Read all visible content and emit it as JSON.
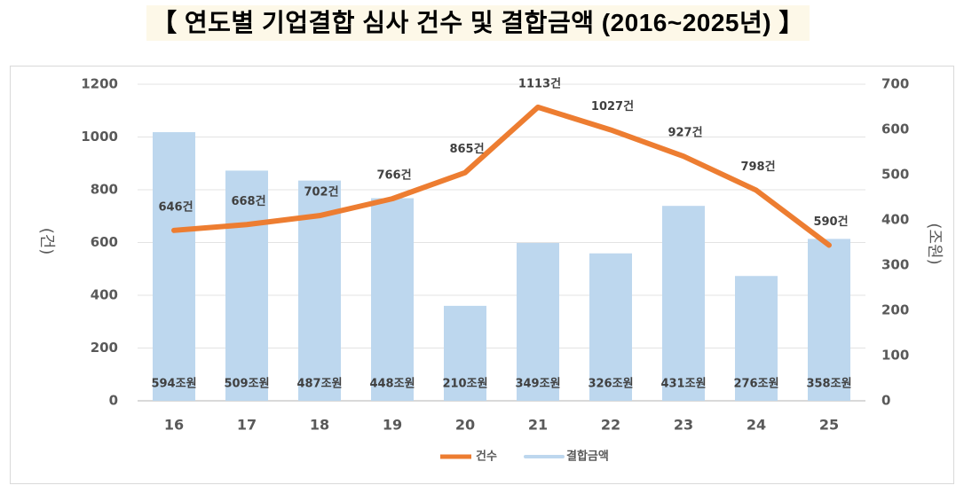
{
  "chart_data": {
    "type": "bar+line",
    "title": "【 연도별 기업결합 심사 건수 및 결합금액 (2016~2025년) 】",
    "categories": [
      "16",
      "17",
      "18",
      "19",
      "20",
      "21",
      "22",
      "23",
      "24",
      "25"
    ],
    "series": [
      {
        "name": "건수",
        "type": "line",
        "axis": "left",
        "color": "#ed7d31",
        "values": [
          646,
          668,
          702,
          766,
          865,
          1113,
          1027,
          927,
          798,
          590
        ],
        "labels": [
          "646건",
          "668건",
          "702건",
          "766건",
          "865건",
          "1113건",
          "1027건",
          "927건",
          "798건",
          "590건"
        ]
      },
      {
        "name": "결합금액",
        "type": "bar",
        "axis": "right",
        "color": "#bdd7ee",
        "values": [
          594,
          509,
          487,
          448,
          210,
          349,
          326,
          431,
          276,
          358
        ],
        "labels": [
          "594조원",
          "509조원",
          "487조원",
          "448조원",
          "210조원",
          "349조원",
          "326조원",
          "431조원",
          "276조원",
          "358조원"
        ]
      }
    ],
    "y_left": {
      "label": "(건)",
      "range": [
        0,
        1200
      ],
      "ticks": [
        "0",
        "200",
        "400",
        "600",
        "800",
        "1000",
        "1200"
      ]
    },
    "y_right": {
      "label": "(조원)",
      "range": [
        0,
        700
      ],
      "ticks": [
        "0",
        "100",
        "200",
        "300",
        "400",
        "500",
        "600",
        "700"
      ]
    },
    "grid": true,
    "legend": {
      "position": "bottom",
      "entries": [
        "건수",
        "결합금액"
      ]
    }
  }
}
